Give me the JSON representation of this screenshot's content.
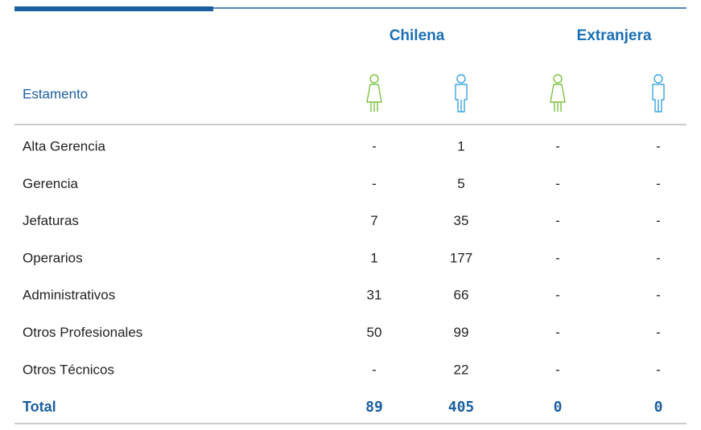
{
  "table": {
    "groups": [
      "Chilena",
      "Extranjera"
    ],
    "first_header": "Estamento",
    "rows": [
      [
        "Alta Gerencia",
        "-",
        1,
        "-",
        "-"
      ],
      [
        "Gerencia",
        "-",
        5,
        "-",
        "-"
      ],
      [
        "Jefaturas",
        7,
        35,
        "-",
        "-"
      ],
      [
        "Operarios",
        1,
        177,
        "-",
        "-"
      ],
      [
        "Administrativos",
        31,
        66,
        "-",
        "-"
      ],
      [
        "Otros Profesionales",
        50,
        99,
        "-",
        "-"
      ],
      [
        "Otros Técnicos",
        "-",
        22,
        "-",
        "-"
      ]
    ],
    "total": [
      "Total",
      89,
      405,
      0,
      0
    ]
  }
}
